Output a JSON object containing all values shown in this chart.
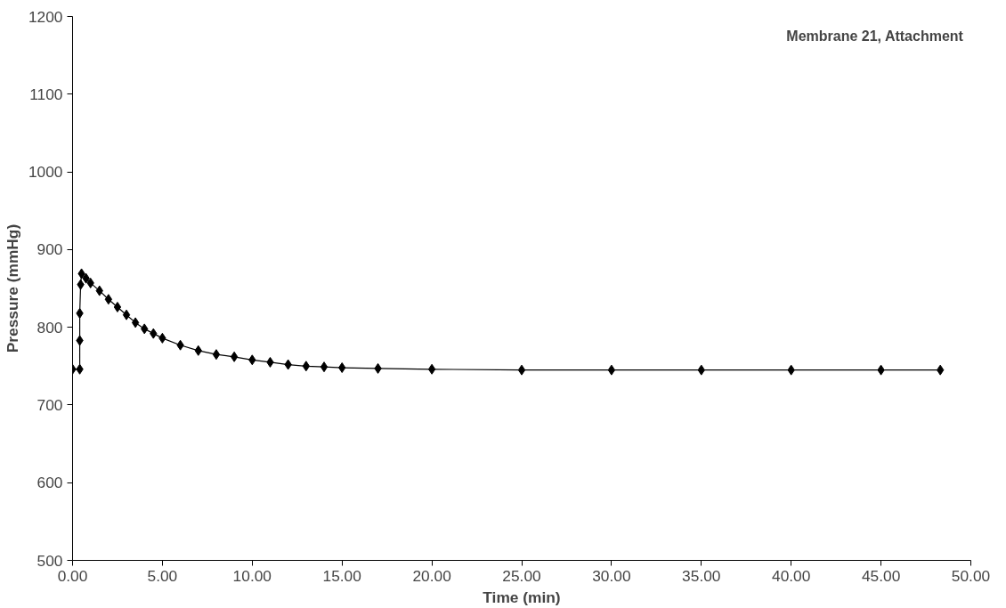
{
  "chart_data": {
    "type": "line",
    "xlabel": "Time (min)",
    "ylabel": "Pressure (mmHg)",
    "annotations": [
      "Membrane 21, Attachment"
    ],
    "xlim": [
      0,
      50
    ],
    "ylim": [
      500,
      1200
    ],
    "xticks": [
      {
        "value": 0,
        "label": "0.00"
      },
      {
        "value": 5,
        "label": "5.00"
      },
      {
        "value": 10,
        "label": "10.00"
      },
      {
        "value": 15,
        "label": "15.00"
      },
      {
        "value": 20,
        "label": "20.00"
      },
      {
        "value": 25,
        "label": "25.00"
      },
      {
        "value": 30,
        "label": "30.00"
      },
      {
        "value": 35,
        "label": "35.00"
      },
      {
        "value": 40,
        "label": "40.00"
      },
      {
        "value": 45,
        "label": "45.00"
      },
      {
        "value": 50,
        "label": "50.00"
      }
    ],
    "yticks": [
      500,
      600,
      700,
      800,
      900,
      1000,
      1100,
      1200
    ],
    "grid": false,
    "marker": "diamond",
    "line_style": "solid",
    "series": [
      {
        "color": "#000000",
        "x": [
          0.0,
          0.4,
          0.4,
          0.4,
          0.45,
          0.5,
          0.75,
          1.0,
          1.5,
          2.0,
          2.5,
          3.0,
          3.5,
          4.0,
          4.5,
          5,
          6,
          7,
          8,
          9,
          10,
          11,
          12,
          13,
          14,
          15,
          17,
          20,
          25,
          30,
          35,
          40,
          45,
          48.3
        ],
        "values": [
          746,
          746,
          783,
          818,
          855,
          869,
          863,
          857,
          847,
          836,
          826,
          816,
          806,
          798,
          792,
          786,
          777,
          770,
          765,
          762,
          758,
          755,
          752,
          750,
          749,
          748,
          747,
          746,
          745,
          745,
          745,
          745,
          745,
          745
        ]
      }
    ]
  }
}
